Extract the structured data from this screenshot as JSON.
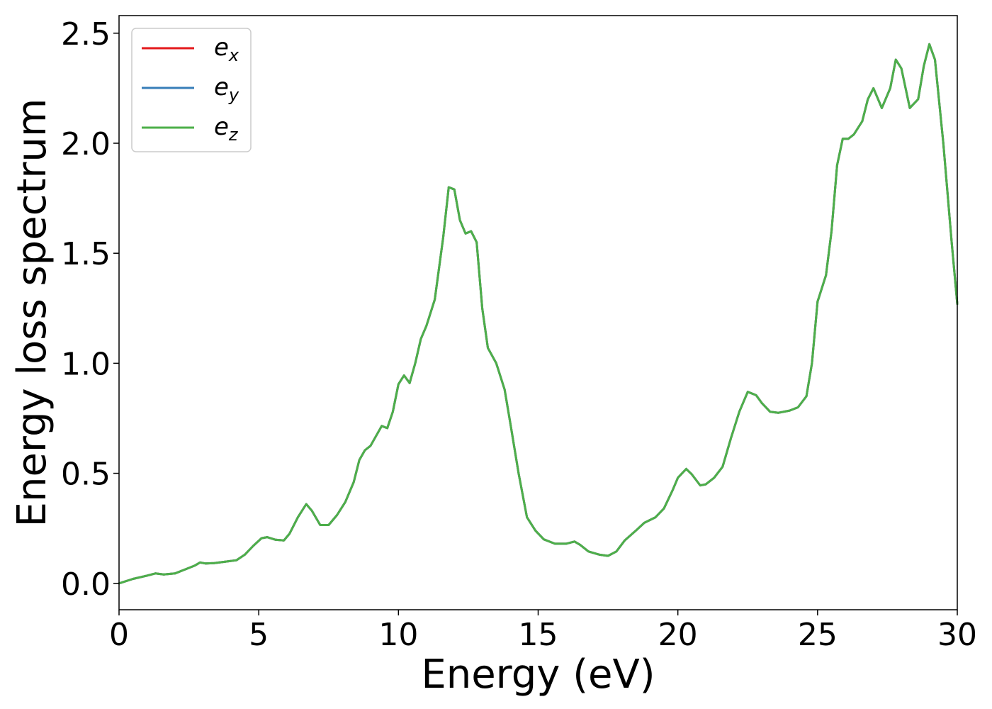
{
  "chart_data": {
    "type": "line",
    "xlabel": "Energy (eV)",
    "ylabel": "Energy loss spectrum",
    "xlim": [
      0,
      30
    ],
    "ylim": [
      -0.12,
      2.58
    ],
    "xticks": [
      "0",
      "5",
      "10",
      "15",
      "20",
      "25",
      "30"
    ],
    "yticks": [
      "0.0",
      "0.5",
      "1.0",
      "1.5",
      "2.0",
      "2.5"
    ],
    "xtick_values": [
      0,
      5,
      10,
      15,
      20,
      25,
      30
    ],
    "ytick_values": [
      0.0,
      0.5,
      1.0,
      1.5,
      2.0,
      2.5
    ],
    "grid": false,
    "legend_position": "top-left",
    "x": [
      0,
      0.5,
      1,
      1.3,
      1.6,
      2,
      2.4,
      2.7,
      2.9,
      3.1,
      3.4,
      3.8,
      4.2,
      4.5,
      4.8,
      5.1,
      5.3,
      5.6,
      5.9,
      6.1,
      6.4,
      6.7,
      6.9,
      7.2,
      7.5,
      7.8,
      8.1,
      8.4,
      8.6,
      8.8,
      9.0,
      9.2,
      9.4,
      9.6,
      9.8,
      10.0,
      10.2,
      10.4,
      10.6,
      10.8,
      11.0,
      11.3,
      11.6,
      11.8,
      12.0,
      12.2,
      12.4,
      12.6,
      12.8,
      13.0,
      13.2,
      13.5,
      13.8,
      14.0,
      14.3,
      14.6,
      14.9,
      15.2,
      15.6,
      16.0,
      16.3,
      16.5,
      16.8,
      17.2,
      17.5,
      17.8,
      18.1,
      18.5,
      18.8,
      19.2,
      19.5,
      19.8,
      20.0,
      20.3,
      20.5,
      20.8,
      21.0,
      21.3,
      21.6,
      21.9,
      22.2,
      22.5,
      22.8,
      23.0,
      23.3,
      23.6,
      24.0,
      24.3,
      24.6,
      24.8,
      25.0,
      25.3,
      25.5,
      25.7,
      25.9,
      26.1,
      26.3,
      26.6,
      26.8,
      27.0,
      27.3,
      27.6,
      27.8,
      28.0,
      28.3,
      28.6,
      28.8,
      29.0,
      29.2,
      29.5,
      29.8,
      30.0
    ],
    "series": [
      {
        "name": "e_x",
        "color": "#e41a1c",
        "values": null
      },
      {
        "name": "e_y",
        "color": "#377eb8",
        "values": null
      },
      {
        "name": "e_z",
        "color": "#4daf4a",
        "values": [
          0.0,
          0.02,
          0.035,
          0.045,
          0.04,
          0.045,
          0.065,
          0.08,
          0.095,
          0.09,
          0.092,
          0.098,
          0.105,
          0.13,
          0.17,
          0.205,
          0.21,
          0.198,
          0.195,
          0.225,
          0.3,
          0.36,
          0.33,
          0.265,
          0.265,
          0.31,
          0.37,
          0.46,
          0.56,
          0.605,
          0.625,
          0.67,
          0.715,
          0.705,
          0.78,
          0.905,
          0.945,
          0.91,
          1.0,
          1.11,
          1.17,
          1.29,
          1.57,
          1.8,
          1.79,
          1.65,
          1.59,
          1.6,
          1.55,
          1.25,
          1.07,
          1.0,
          0.88,
          0.73,
          0.5,
          0.3,
          0.24,
          0.2,
          0.18,
          0.18,
          0.19,
          0.175,
          0.145,
          0.13,
          0.125,
          0.145,
          0.195,
          0.24,
          0.275,
          0.3,
          0.34,
          0.42,
          0.48,
          0.52,
          0.495,
          0.445,
          0.45,
          0.48,
          0.53,
          0.66,
          0.78,
          0.87,
          0.855,
          0.82,
          0.78,
          0.775,
          0.785,
          0.8,
          0.85,
          1.0,
          1.28,
          1.4,
          1.6,
          1.9,
          2.02,
          2.02,
          2.04,
          2.1,
          2.2,
          2.25,
          2.16,
          2.25,
          2.38,
          2.34,
          2.16,
          2.2,
          2.35,
          2.45,
          2.38,
          2.0,
          1.55,
          1.27
        ]
      }
    ]
  },
  "legend": {
    "items": [
      {
        "base": "e",
        "sub": "x",
        "color": "#e41a1c"
      },
      {
        "base": "e",
        "sub": "y",
        "color": "#377eb8"
      },
      {
        "base": "e",
        "sub": "z",
        "color": "#4daf4a"
      }
    ]
  }
}
